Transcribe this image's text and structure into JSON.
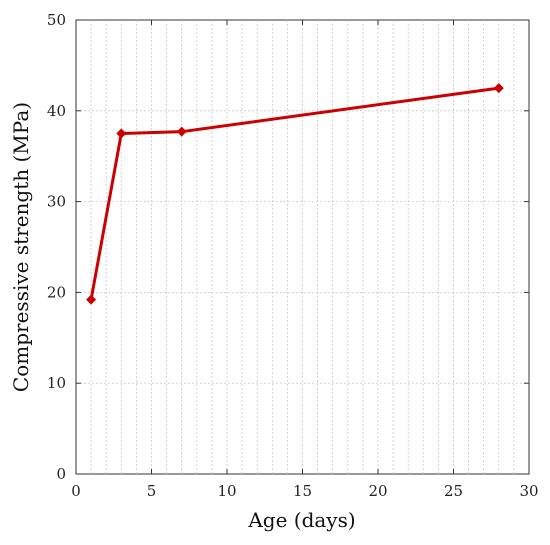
{
  "chart_data": {
    "type": "line",
    "title": "",
    "xlabel": "Age (days)",
    "ylabel": "Compressive strength (MPa)",
    "xlim": [
      0,
      30
    ],
    "ylim": [
      0,
      50
    ],
    "x_ticks": [
      0,
      5,
      10,
      15,
      20,
      25,
      30
    ],
    "y_ticks": [
      0,
      10,
      20,
      30,
      40,
      50
    ],
    "grid": true,
    "legend": "none",
    "series": [
      {
        "color": "#cc0000",
        "marker": "diamond",
        "x": [
          1,
          3,
          7,
          28
        ],
        "y": [
          19.2,
          37.5,
          37.7,
          42.5
        ]
      }
    ]
  }
}
